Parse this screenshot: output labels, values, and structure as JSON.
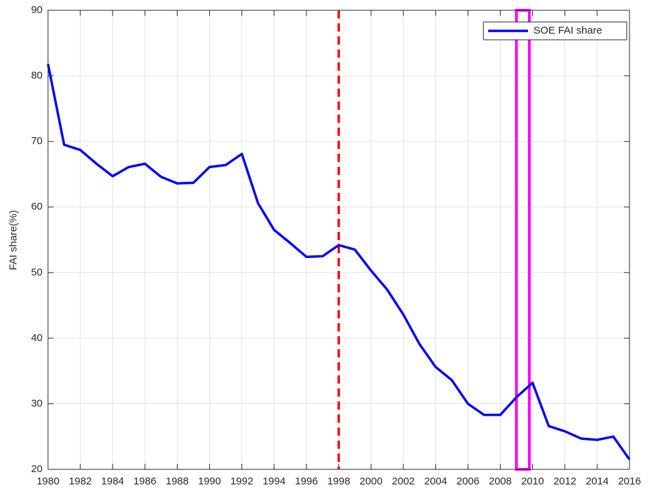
{
  "chart_data": {
    "type": "line",
    "ylabel": "FAI share(%)",
    "x": [
      1980,
      1981,
      1982,
      1983,
      1984,
      1985,
      1986,
      1987,
      1988,
      1989,
      1990,
      1991,
      1992,
      1993,
      1994,
      1995,
      1996,
      1997,
      1998,
      1999,
      2000,
      2001,
      2002,
      2003,
      2004,
      2005,
      2006,
      2007,
      2008,
      2009,
      2010,
      2011,
      2012,
      2013,
      2014,
      2015,
      2016
    ],
    "series": [
      {
        "name": "SOE FAI share",
        "color": "#0000ff",
        "values": [
          81.8,
          69.5,
          68.7,
          66.6,
          64.7,
          66.1,
          66.6,
          64.6,
          63.6,
          63.7,
          66.1,
          66.4,
          68.1,
          60.6,
          56.5,
          54.5,
          52.4,
          52.5,
          54.2,
          53.5,
          50.3,
          47.4,
          43.6,
          39.1,
          35.6,
          33.6,
          30.0,
          28.3,
          28.3,
          31.0,
          33.2,
          26.6,
          25.8,
          24.7,
          24.5,
          25.0,
          21.5
        ]
      }
    ],
    "xlim": [
      1980,
      2016
    ],
    "xticks": [
      1980,
      1982,
      1984,
      1986,
      1988,
      1990,
      1992,
      1994,
      1996,
      1998,
      2000,
      2002,
      2004,
      2006,
      2008,
      2010,
      2012,
      2014,
      2016
    ],
    "ylim": [
      20,
      90
    ],
    "yticks": [
      20,
      30,
      40,
      50,
      60,
      70,
      80,
      90
    ],
    "grid": true,
    "legend": "upper-right",
    "vline": 1998,
    "vline_color": "#ff0000",
    "highlight": [
      2009,
      2009.8
    ],
    "highlight_color": "#ff00ff"
  }
}
